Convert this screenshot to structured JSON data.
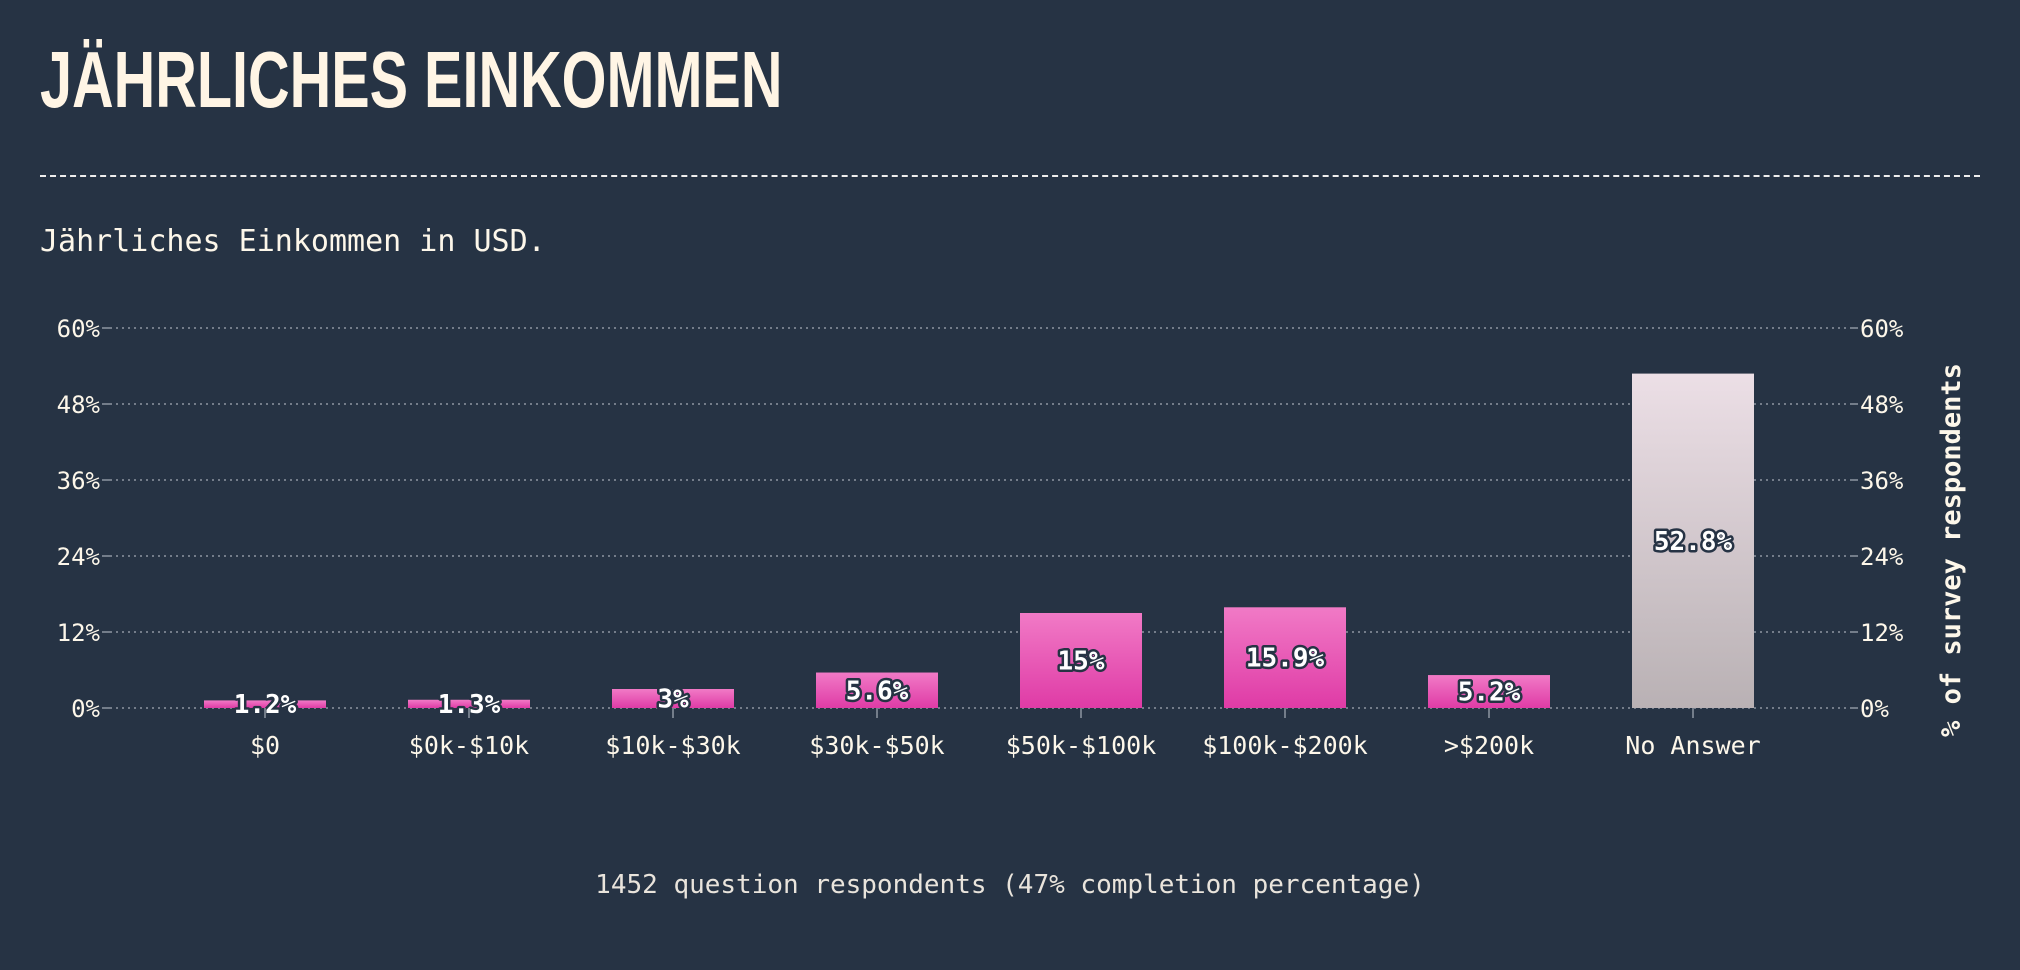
{
  "page": {
    "title": "JÄHRLICHES EINKOMMEN",
    "subtitle": "Jährliches Einkommen in USD.",
    "footer": "1452 question respondents (47% completion percentage)"
  },
  "colors": {
    "background": "#263344",
    "bar_top": "#f17ac6",
    "bar_bottom": "#df3ba6",
    "na_top": "#ecdfe6",
    "na_bottom": "#b9b1b4",
    "grid": "#8d96a1",
    "text": "#fdf7ea"
  },
  "chart_data": {
    "type": "bar",
    "categories": [
      "$0",
      "$0k-$10k",
      "$10k-$30k",
      "$30k-$50k",
      "$50k-$100k",
      "$100k-$200k",
      ">$200k",
      "No Answer"
    ],
    "values": [
      1.2,
      1.3,
      3,
      5.6,
      15,
      15.9,
      5.2,
      52.8
    ],
    "value_labels": [
      "1.2%",
      "1.3%",
      "3%",
      "5.6%",
      "15%",
      "15.9%",
      "5.2%",
      "52.8%"
    ],
    "highlight_category": "No Answer",
    "ylim": [
      0,
      60
    ],
    "yticks": [
      0,
      12,
      24,
      36,
      48,
      60
    ],
    "ytick_labels": [
      "0%",
      "12%",
      "24%",
      "36%",
      "48%",
      "60%"
    ],
    "ylabel_right": "% of survey respondents",
    "xlabel": "",
    "grid": true
  }
}
